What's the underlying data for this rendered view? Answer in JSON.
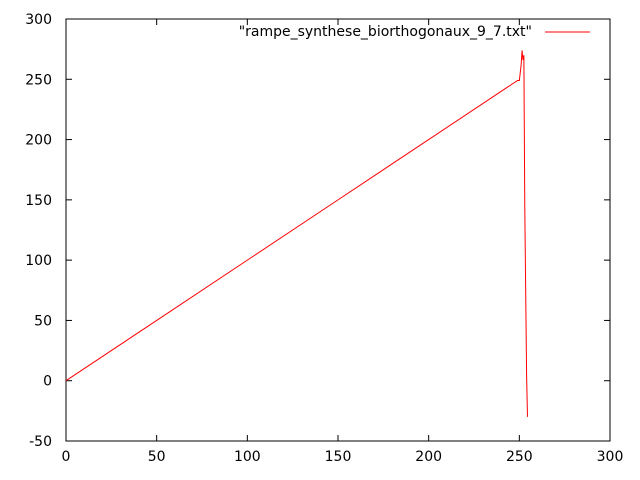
{
  "chart_data": {
    "type": "line",
    "title": "",
    "xlabel": "",
    "ylabel": "",
    "xlim": [
      0,
      300
    ],
    "ylim": [
      -50,
      300
    ],
    "x_ticks": [
      0,
      50,
      100,
      150,
      200,
      250,
      300
    ],
    "y_ticks": [
      -50,
      0,
      50,
      100,
      150,
      200,
      250,
      300
    ],
    "grid": false,
    "legend_position": "top-right",
    "series": [
      {
        "name": "\"rampe_synthese_biorthogonaux_9_7.txt\"",
        "color": "#ff0000",
        "x": [
          0,
          50,
          100,
          150,
          200,
          249,
          250,
          251,
          251.5,
          252,
          252.5,
          253,
          253.5,
          254,
          254.5
        ],
        "y": [
          0,
          50,
          100,
          150,
          200,
          249,
          249,
          262,
          274,
          266,
          270,
          145,
          75,
          5,
          -30
        ]
      }
    ]
  }
}
